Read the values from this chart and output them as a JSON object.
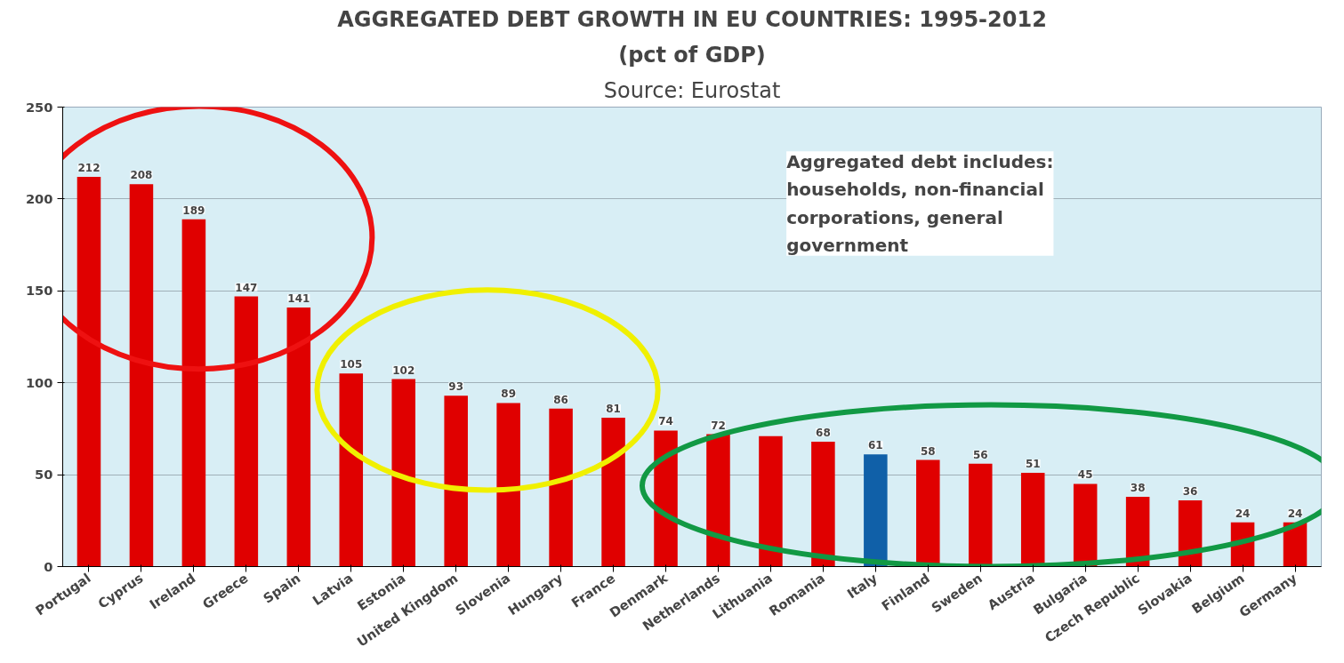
{
  "chart_data": {
    "type": "bar",
    "title": "AGGREGATED DEBT GROWTH IN EU COUNTRIES: 1995-2012",
    "subtitle": "(pct of GDP)",
    "categories": [
      "Portugal",
      "Cyprus",
      "Ireland",
      "Greece",
      "Spain",
      "Latvia",
      "Estonia",
      "United Kingdom",
      "Slovenia",
      "Hungary",
      "France",
      "Denmark",
      "Netherlands",
      "Lithuania",
      "Romania",
      "Italy",
      "Finland",
      "Sweden",
      "Austria",
      "Bulgaria",
      "Czech Republic",
      "Slovakia",
      "Belgium",
      "Germany"
    ],
    "values": [
      212,
      208,
      189,
      147,
      141,
      105,
      102,
      93,
      89,
      86,
      81,
      74,
      72,
      71,
      68,
      61,
      58,
      56,
      51,
      45,
      38,
      36,
      24,
      24
    ],
    "colors": [
      "#e00000",
      "#e00000",
      "#e00000",
      "#e00000",
      "#e00000",
      "#e00000",
      "#e00000",
      "#e00000",
      "#e00000",
      "#e00000",
      "#e00000",
      "#e00000",
      "#e00000",
      "#e00000",
      "#e00000",
      "#1060a8",
      "#e00000",
      "#e00000",
      "#e00000",
      "#e00000",
      "#e00000",
      "#e00000",
      "#e00000",
      "#e00000"
    ],
    "value_labels": [
      "212",
      "208",
      "189",
      "147",
      "141",
      "105",
      "102",
      "93",
      "89",
      "86",
      "81",
      "74",
      "72",
      null,
      "68",
      "61",
      "58",
      "56",
      "51",
      "45",
      "38",
      "36",
      "24",
      "24"
    ],
    "ylim": [
      0,
      250
    ],
    "yticks": [
      0,
      50,
      100,
      150,
      200,
      250
    ],
    "grid": "y",
    "annotations": [
      "Source: Eurostat",
      "Aggregated debt includes: households, non-financial corporations, general government"
    ]
  }
}
